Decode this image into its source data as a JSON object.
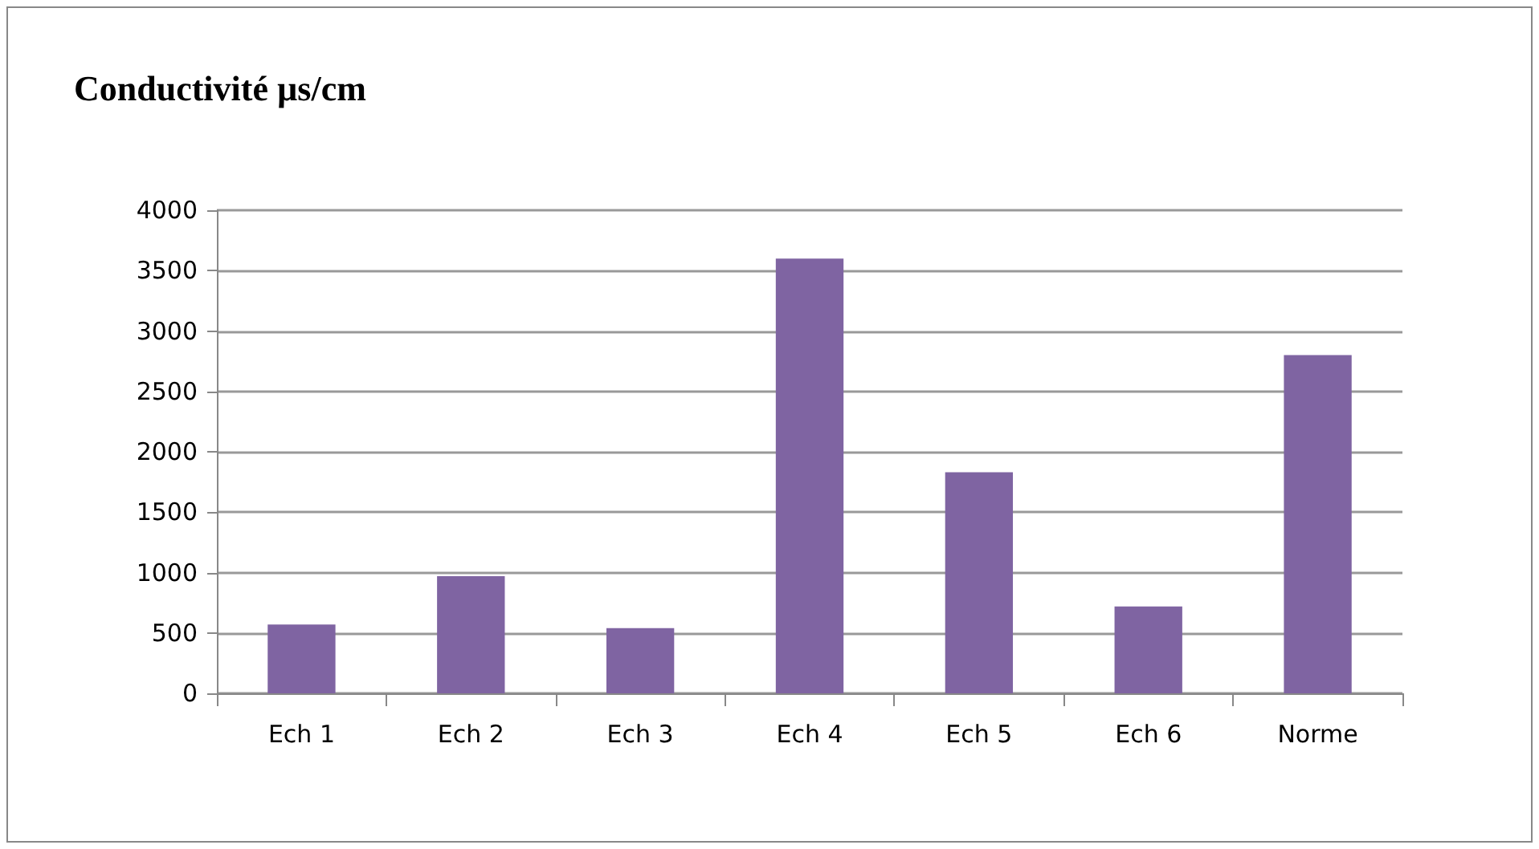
{
  "chart_data": {
    "type": "bar",
    "title": "Conductivité µs/cm",
    "categories": [
      "Ech 1",
      "Ech 2",
      "Ech 3",
      "Ech 4",
      "Ech 5",
      "Ech 6",
      "Norme"
    ],
    "values": [
      570,
      970,
      540,
      3600,
      1830,
      720,
      2800
    ],
    "color": "#7f64a2",
    "ylim": [
      0,
      4000
    ],
    "yticks": [
      0,
      500,
      1000,
      1500,
      2000,
      2500,
      3000,
      3500,
      4000
    ],
    "grid": "y"
  }
}
